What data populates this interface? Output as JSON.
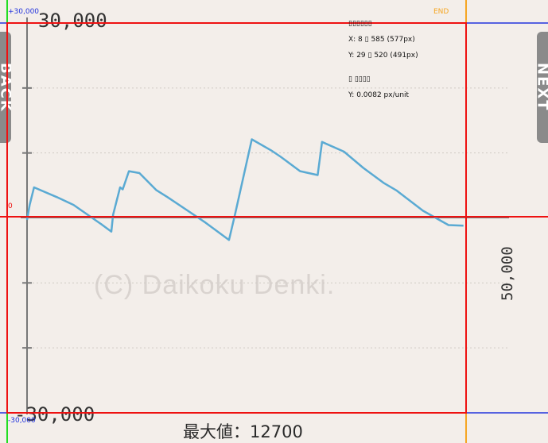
{
  "nav": {
    "back_label": "BACK",
    "next_label": "NEXT"
  },
  "chart_data": {
    "type": "line",
    "title": "",
    "xlabel": "",
    "ylabel": "",
    "ylim": [
      -30000,
      30000
    ],
    "xlim": [
      0,
      50000
    ],
    "y_tick_labels": {
      "top": "30,000",
      "bottom": "-30,000"
    },
    "x_end_label": "50,000",
    "grid": true,
    "max_label": "最大値：12700",
    "watermark": "(C) Daikoku Denki.",
    "line_color": "#5aaad3",
    "series": [
      {
        "x": [
          0,
          300,
          800,
          3400,
          5300,
          8500,
          9600,
          9800,
          10600,
          10900,
          11600,
          12800,
          14700,
          16000,
          20300,
          23000,
          23700,
          25600,
          27800,
          28900,
          31100,
          33100,
          33600,
          36100,
          38300,
          40600,
          42100,
          45100,
          48000,
          49700
        ],
        "y": [
          -300,
          2000,
          4700,
          3200,
          2000,
          -1000,
          -2100,
          500,
          4700,
          4400,
          7200,
          6900,
          4300,
          3200,
          -700,
          -3400,
          600,
          12100,
          10400,
          9400,
          7200,
          6600,
          11700,
          10200,
          7700,
          5400,
          4200,
          1100,
          -1100,
          -1200
        ]
      }
    ]
  },
  "guides": {
    "top_value_label": "+30,000",
    "bottom_value_label": "-30,000",
    "zero_label": "0",
    "end_label": "END",
    "info_title_1": "▯▯▯▯▯▯",
    "info_x": "X: 8 ▯ 585 (577px)",
    "info_y": "Y: 29 ▯ 520 (491px)",
    "info_title_2": "▯ ▯▯▯▯",
    "info_scale": "Y: 0.0082 px/unit"
  }
}
